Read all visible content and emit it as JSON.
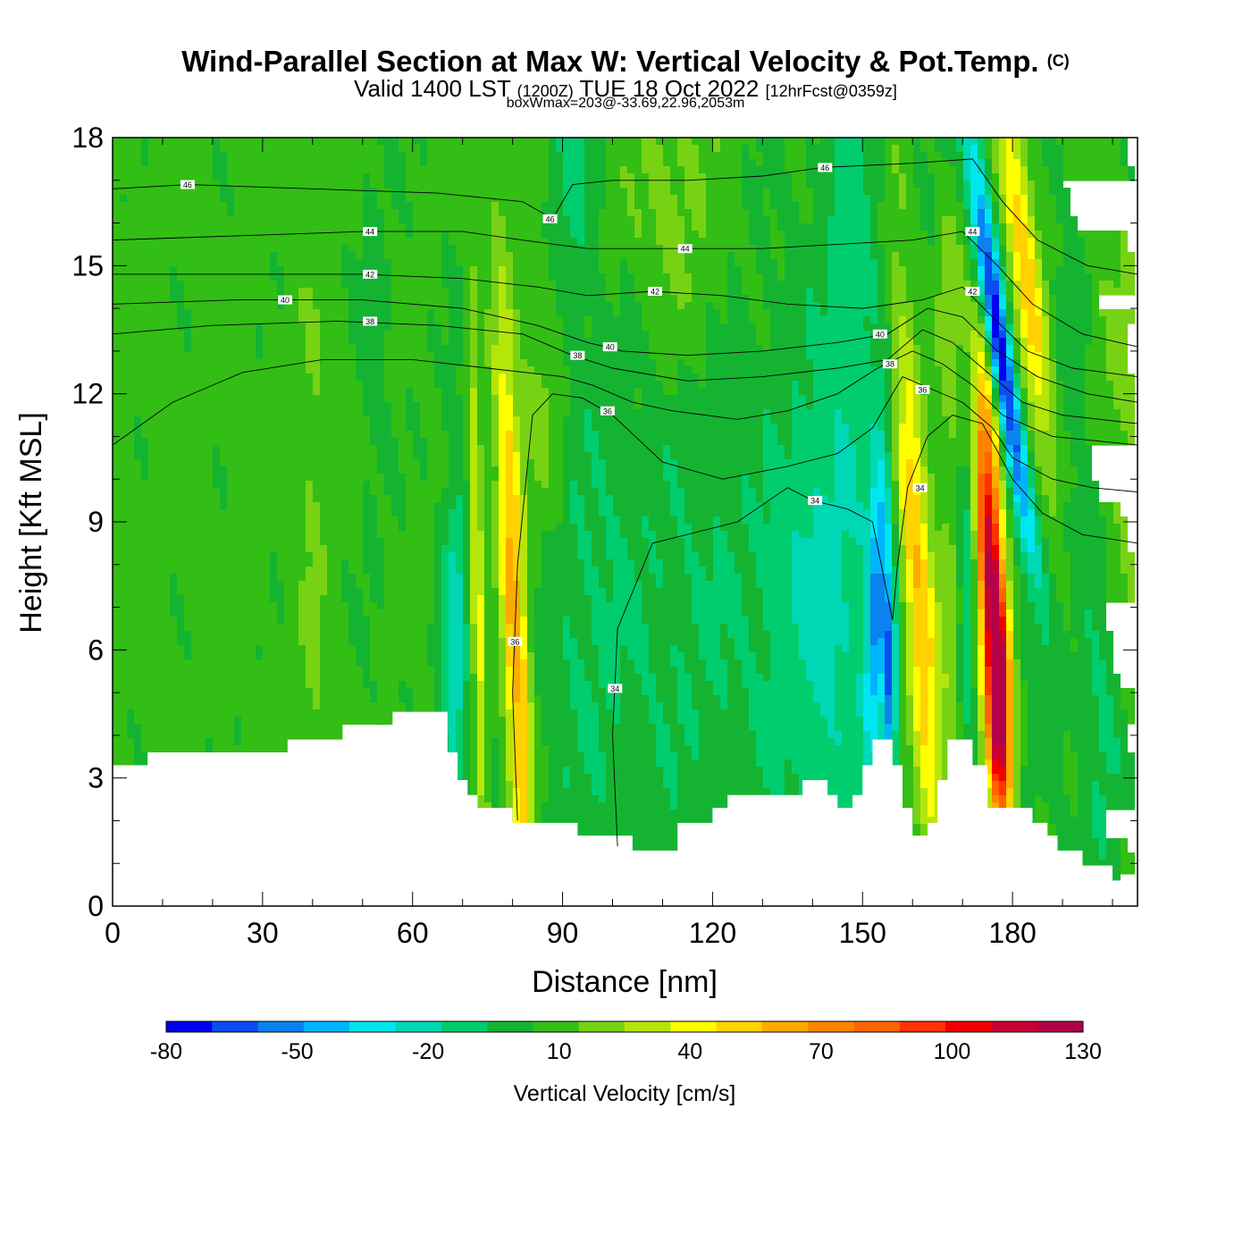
{
  "title": {
    "main": "Wind-Parallel Section at Max W: Vertical Velocity & Pot.Temp.",
    "copyright": "(C)",
    "valid_prefix": "Valid 1400 LST",
    "utc": "(1200Z)",
    "valid_date": "TUE 18 Oct 2022",
    "forecast": "[12hrFcst@0359z]",
    "boxwmax": "boxWmax=203@-33.69,22.96,2053m"
  },
  "chart_data": {
    "type": "heatmap",
    "title": "Wind-Parallel Section at Max W: Vertical Velocity & Pot.Temp.",
    "xlabel": "Distance [nm]",
    "ylabel": "Height [Kft MSL]",
    "xlim": [
      0,
      205
    ],
    "ylim": [
      0,
      18
    ],
    "x_ticks": [
      "0",
      "30",
      "60",
      "90",
      "120",
      "150",
      "180"
    ],
    "x_tick_values": [
      0,
      30,
      60,
      90,
      120,
      150,
      180
    ],
    "y_ticks": [
      "0",
      "3",
      "6",
      "9",
      "12",
      "15",
      "18"
    ],
    "y_tick_values": [
      0,
      3,
      6,
      9,
      12,
      15,
      18
    ],
    "colorbar": {
      "label": "Vertical Velocity [cm/s]",
      "tick_labels": [
        "-80",
        "-50",
        "-20",
        "10",
        "40",
        "70",
        "100",
        "130"
      ],
      "tick_values": [
        -80,
        -50,
        -20,
        10,
        40,
        70,
        100,
        130
      ],
      "boundaries": [
        -80,
        -70,
        -60,
        -50,
        -40,
        -30,
        -20,
        -10,
        0,
        10,
        20,
        30,
        40,
        50,
        60,
        70,
        80,
        90,
        100,
        110,
        120,
        130
      ],
      "colors": [
        "#0000f0",
        "#0a4df0",
        "#0a82f0",
        "#00b4ff",
        "#00e6f0",
        "#00d7b4",
        "#00cd6e",
        "#14b432",
        "#32be14",
        "#78d214",
        "#b4e60a",
        "#ffff00",
        "#ffd200",
        "#ffaa00",
        "#ff8200",
        "#ff6400",
        "#ff3200",
        "#f00000",
        "#c80032",
        "#b40046"
      ]
    },
    "terrain": [
      {
        "x": 0,
        "z": 3.3
      },
      {
        "x": 7,
        "z": 3.6
      },
      {
        "x": 35,
        "z": 3.9
      },
      {
        "x": 46,
        "z": 4.25
      },
      {
        "x": 56,
        "z": 4.55
      },
      {
        "x": 67,
        "z": 3.6
      },
      {
        "x": 69,
        "z": 2.95
      },
      {
        "x": 71,
        "z": 2.6
      },
      {
        "x": 73,
        "z": 2.3
      },
      {
        "x": 80,
        "z": 1.95
      },
      {
        "x": 93,
        "z": 1.65
      },
      {
        "x": 104,
        "z": 1.3
      },
      {
        "x": 113,
        "z": 1.95
      },
      {
        "x": 120,
        "z": 2.3
      },
      {
        "x": 123,
        "z": 2.6
      },
      {
        "x": 138,
        "z": 2.95
      },
      {
        "x": 143,
        "z": 2.6
      },
      {
        "x": 145,
        "z": 2.3
      },
      {
        "x": 148,
        "z": 2.6
      },
      {
        "x": 150,
        "z": 3.3
      },
      {
        "x": 152,
        "z": 3.9
      },
      {
        "x": 156,
        "z": 3.3
      },
      {
        "x": 158,
        "z": 2.3
      },
      {
        "x": 160,
        "z": 1.65
      },
      {
        "x": 163,
        "z": 1.95
      },
      {
        "x": 165,
        "z": 2.95
      },
      {
        "x": 167,
        "z": 3.9
      },
      {
        "x": 172,
        "z": 3.3
      },
      {
        "x": 175,
        "z": 2.3
      },
      {
        "x": 184,
        "z": 1.95
      },
      {
        "x": 187,
        "z": 1.65
      },
      {
        "x": 189,
        "z": 1.3
      },
      {
        "x": 194,
        "z": 0.95
      },
      {
        "x": 200,
        "z": 0.6
      },
      {
        "x": 202,
        "z": 0.35
      },
      {
        "x": 205,
        "z": 0.35
      }
    ],
    "vertical_velocity_features": [
      {
        "x": 0,
        "z": 10,
        "sx": 60,
        "sz": 20,
        "w": 4
      },
      {
        "x": 73,
        "z": 7.5,
        "sx": 0.9,
        "sz": 4.5,
        "w": 34,
        "tilt": -0.2
      },
      {
        "x": 80.5,
        "z": 6.5,
        "sx": 1.8,
        "sz": 5.2,
        "w": 58,
        "tilt": -0.35
      },
      {
        "x": 68.5,
        "z": 5.5,
        "sx": 1.6,
        "sz": 3.5,
        "w": -30
      },
      {
        "x": 86,
        "z": 11.5,
        "sx": 3.0,
        "sz": 2.5,
        "w": 15
      },
      {
        "x": 95,
        "z": 6.5,
        "sx": 9,
        "sz": 4.5,
        "w": -12
      },
      {
        "x": 118,
        "z": 6.5,
        "sx": 10,
        "sz": 4.5,
        "w": -10
      },
      {
        "x": 142,
        "z": 7,
        "sx": 8,
        "sz": 4.0,
        "w": -24
      },
      {
        "x": 153,
        "z": 7.2,
        "sx": 1.5,
        "sz": 2.8,
        "w": -45,
        "tilt": 0.25
      },
      {
        "x": 155.5,
        "z": 5.2,
        "sx": 0.8,
        "sz": 1.8,
        "w": -55
      },
      {
        "x": 161,
        "z": 7.5,
        "sx": 2.2,
        "sz": 5.0,
        "w": 50,
        "tilt": -0.5
      },
      {
        "x": 167,
        "z": 5.5,
        "sx": 3,
        "sz": 2.5,
        "w": 12
      },
      {
        "x": 171,
        "z": 7.5,
        "sx": 1.2,
        "sz": 3.0,
        "w": -25
      },
      {
        "x": 176,
        "z": 7.0,
        "sx": 1.9,
        "sz": 3.8,
        "w": 115,
        "tilt": -0.4
      },
      {
        "x": 177.5,
        "z": 4.8,
        "sx": 1.4,
        "sz": 1.8,
        "w": 45
      },
      {
        "x": 177,
        "z": 13.5,
        "sx": 1.6,
        "sz": 3.5,
        "w": -80,
        "tilt": -1.25
      },
      {
        "x": 183,
        "z": 14.5,
        "sx": 2.3,
        "sz": 4.2,
        "w": 46,
        "tilt": -1.0
      },
      {
        "x": 167.5,
        "z": 13.5,
        "sx": 1.8,
        "sz": 2.5,
        "w": 18
      },
      {
        "x": 201,
        "z": 11,
        "sx": 4,
        "sz": 4.5,
        "w": 14
      },
      {
        "x": 189,
        "z": 9.5,
        "sx": 4,
        "sz": 3,
        "w": -12
      },
      {
        "x": 198,
        "z": 4.5,
        "sx": 3,
        "sz": 3.5,
        "w": -15
      },
      {
        "x": 92,
        "z": 17.5,
        "sx": 3,
        "sz": 2.5,
        "w": -15
      },
      {
        "x": 112,
        "z": 16.5,
        "sx": 7,
        "sz": 2.5,
        "w": 14
      },
      {
        "x": 148,
        "z": 15,
        "sx": 4,
        "sz": 3.5,
        "w": -15
      },
      {
        "x": 40,
        "z": 7,
        "sx": 2,
        "sz": 9,
        "w": 8
      },
      {
        "x": 52,
        "z": 13,
        "sx": 2.5,
        "sz": 4,
        "w": -7
      }
    ],
    "potential_temperature_contours": [
      {
        "label": "34",
        "label_at": [
          [
            100.5,
            5.1
          ],
          [
            140.5,
            9.5
          ],
          [
            161.5,
            9.8
          ]
        ],
        "points": [
          [
            101,
            1.4
          ],
          [
            100,
            4
          ],
          [
            101,
            6.5
          ],
          [
            108,
            8.5
          ],
          [
            125,
            9
          ],
          [
            135,
            9.8
          ],
          [
            140,
            9.5
          ],
          [
            147,
            9.3
          ],
          [
            152,
            9
          ],
          [
            156,
            6.7
          ],
          [
            157,
            8
          ],
          [
            159,
            9.8
          ],
          [
            163,
            11
          ],
          [
            168,
            11.5
          ],
          [
            174,
            11.3
          ],
          [
            180,
            10
          ],
          [
            186,
            9.2
          ],
          [
            194,
            8.7
          ],
          [
            205,
            8.5
          ]
        ]
      },
      {
        "label": "36",
        "label_at": [
          [
            80.5,
            6.2
          ],
          [
            99,
            11.6
          ],
          [
            162,
            12.1
          ]
        ],
        "points": [
          [
            81,
            2.0
          ],
          [
            80,
            5
          ],
          [
            81,
            8
          ],
          [
            84,
            11.5
          ],
          [
            88,
            12.0
          ],
          [
            94,
            11.9
          ],
          [
            100,
            11.5
          ],
          [
            110,
            10.4
          ],
          [
            122,
            10.0
          ],
          [
            135,
            10.3
          ],
          [
            145,
            10.6
          ],
          [
            152,
            11.2
          ],
          [
            158,
            12.4
          ],
          [
            164,
            12.1
          ],
          [
            170,
            11.8
          ],
          [
            176,
            11.2
          ],
          [
            180,
            10.5
          ],
          [
            188,
            10
          ],
          [
            196,
            9.8
          ],
          [
            205,
            9.7
          ]
        ]
      },
      {
        "label": "36",
        "label_at": [
          [
            0,
            0
          ]
        ],
        "points": [
          [
            0,
            10.8
          ],
          [
            12,
            11.8
          ],
          [
            26,
            12.5
          ],
          [
            42,
            12.8
          ],
          [
            60,
            12.8
          ],
          [
            75,
            12.6
          ],
          [
            90,
            12.4
          ],
          [
            96,
            12.2
          ],
          [
            104,
            11.8
          ],
          [
            112,
            11.6
          ],
          [
            125,
            11.4
          ],
          [
            135,
            11.6
          ],
          [
            145,
            12.0
          ],
          [
            153,
            12.6
          ],
          [
            160,
            13.0
          ],
          [
            166,
            12.7
          ],
          [
            172,
            12.2
          ],
          [
            178,
            11.5
          ],
          [
            188,
            11.0
          ],
          [
            205,
            10.8
          ]
        ]
      },
      {
        "label": "38",
        "label_at": [
          [
            51.5,
            13.7
          ],
          [
            93,
            12.9
          ],
          [
            155.5,
            12.7
          ]
        ],
        "points": [
          [
            0,
            13.4
          ],
          [
            20,
            13.6
          ],
          [
            45,
            13.7
          ],
          [
            65,
            13.6
          ],
          [
            82,
            13.4
          ],
          [
            92,
            12.9
          ],
          [
            100,
            12.6
          ],
          [
            115,
            12.3
          ],
          [
            130,
            12.4
          ],
          [
            145,
            12.6
          ],
          [
            155,
            12.8
          ],
          [
            162,
            13.5
          ],
          [
            168,
            13.2
          ],
          [
            175,
            12.5
          ],
          [
            182,
            11.8
          ],
          [
            190,
            11.5
          ],
          [
            205,
            11.3
          ]
        ]
      },
      {
        "label": "40",
        "label_at": [
          [
            34.5,
            14.2
          ],
          [
            99.5,
            13.1
          ],
          [
            153.5,
            13.4
          ]
        ],
        "points": [
          [
            0,
            14.1
          ],
          [
            25,
            14.2
          ],
          [
            50,
            14.2
          ],
          [
            70,
            14.0
          ],
          [
            85,
            13.6
          ],
          [
            95,
            13.2
          ],
          [
            102,
            13.0
          ],
          [
            115,
            12.9
          ],
          [
            130,
            13.0
          ],
          [
            145,
            13.2
          ],
          [
            155,
            13.4
          ],
          [
            163,
            14.0
          ],
          [
            170,
            13.8
          ],
          [
            177,
            13.0
          ],
          [
            185,
            12.4
          ],
          [
            195,
            12.0
          ],
          [
            205,
            11.8
          ]
        ]
      },
      {
        "label": "42",
        "label_at": [
          [
            51.5,
            14.8
          ],
          [
            108.5,
            14.4
          ],
          [
            172,
            14.4
          ]
        ],
        "points": [
          [
            0,
            14.8
          ],
          [
            25,
            14.8
          ],
          [
            50,
            14.8
          ],
          [
            70,
            14.7
          ],
          [
            85,
            14.5
          ],
          [
            95,
            14.3
          ],
          [
            108,
            14.4
          ],
          [
            122,
            14.3
          ],
          [
            135,
            14.1
          ],
          [
            150,
            14.0
          ],
          [
            162,
            14.2
          ],
          [
            170,
            14.5
          ],
          [
            176,
            13.8
          ],
          [
            183,
            13.0
          ],
          [
            192,
            12.6
          ],
          [
            205,
            12.4
          ]
        ]
      },
      {
        "label": "44",
        "label_at": [
          [
            51.5,
            15.8
          ],
          [
            114.5,
            15.4
          ],
          [
            172,
            15.8
          ]
        ],
        "points": [
          [
            0,
            15.6
          ],
          [
            25,
            15.7
          ],
          [
            50,
            15.8
          ],
          [
            70,
            15.8
          ],
          [
            82,
            15.6
          ],
          [
            95,
            15.4
          ],
          [
            114,
            15.4
          ],
          [
            130,
            15.4
          ],
          [
            145,
            15.5
          ],
          [
            160,
            15.6
          ],
          [
            170,
            15.8
          ],
          [
            177,
            15.0
          ],
          [
            184,
            14.1
          ],
          [
            194,
            13.4
          ],
          [
            205,
            13.1
          ]
        ]
      },
      {
        "label": "46",
        "label_at": [
          [
            15,
            16.9
          ],
          [
            87.5,
            16.1
          ],
          [
            142.5,
            17.3
          ]
        ],
        "points": [
          [
            0,
            16.8
          ],
          [
            15,
            16.9
          ],
          [
            40,
            16.8
          ],
          [
            65,
            16.7
          ],
          [
            82,
            16.5
          ],
          [
            88,
            16.1
          ],
          [
            92,
            16.9
          ],
          [
            100,
            17.0
          ],
          [
            115,
            17.0
          ],
          [
            130,
            17.1
          ],
          [
            142,
            17.3
          ],
          [
            160,
            17.4
          ],
          [
            172,
            17.5
          ],
          [
            178,
            16.5
          ],
          [
            185,
            15.6
          ],
          [
            195,
            15.0
          ],
          [
            205,
            14.8
          ]
        ]
      }
    ]
  }
}
